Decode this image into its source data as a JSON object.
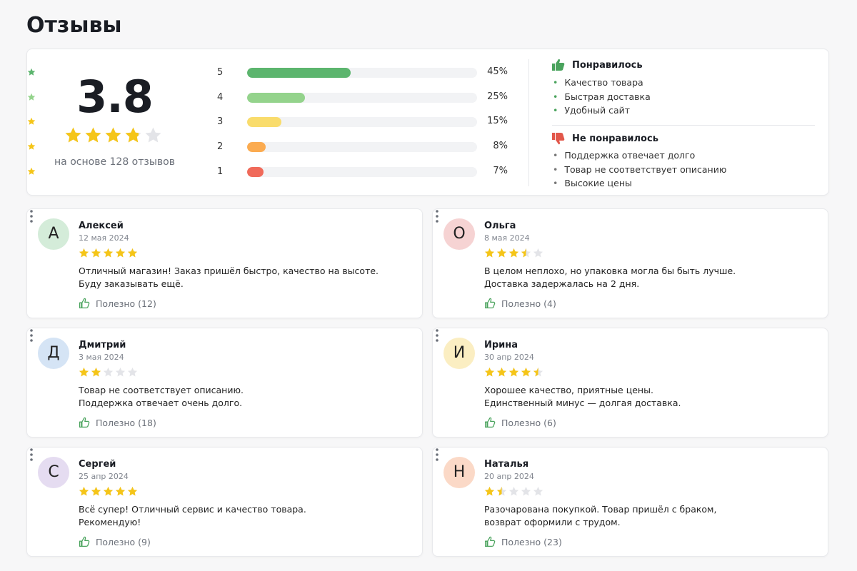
{
  "header": {
    "title": "Отзывы"
  },
  "summary": {
    "rating": 3.8,
    "based_on": "на основе 128 отзывов"
  },
  "distribution": [
    {
      "stars": 5,
      "value": 45,
      "label": "45%",
      "color": "#5cb56e"
    },
    {
      "stars": 4,
      "value": 25,
      "label": "25%",
      "color": "#94d38c"
    },
    {
      "stars": 3,
      "value": 15,
      "label": "15%",
      "color": "#f9dc6c"
    },
    {
      "stars": 2,
      "value": 8,
      "label": "8%",
      "color": "#fbab50"
    },
    {
      "stars": 1,
      "value": 7,
      "label": "7%",
      "color": "#f06a5a"
    }
  ],
  "pros": {
    "title": "Понравилось",
    "items": [
      "Качество товара",
      "Быстрая доставка",
      "Удобный сайт"
    ]
  },
  "cons": {
    "title": "Не понравилось",
    "items": [
      "Поддержка отвечает долго",
      "Товар не соответствует описанию",
      "Высокие цены"
    ]
  },
  "reviews": [
    {
      "initial": "А",
      "avatar_color": "#d4ecd9",
      "name": "Алексей",
      "date": "12 мая 2024",
      "rating": 5,
      "text": [
        "Отличный магазин! Заказ пришёл быстро, качество на высоте.",
        "Буду заказывать ещё."
      ],
      "helpful": "Полезно (12)"
    },
    {
      "initial": "О",
      "avatar_color": "#f6d3d3",
      "name": "Ольга",
      "date": "8 мая 2024",
      "rating": 3.5,
      "text": [
        "В целом неплохо, но упаковка могла бы быть лучше.",
        "Доставка задержалась на 2 дня."
      ],
      "helpful": "Полезно (4)"
    },
    {
      "initial": "Д",
      "avatar_color": "#d5e4f5",
      "name": "Дмитрий",
      "date": "3 мая 2024",
      "rating": 2,
      "text": [
        "Товар не соответствует описанию.",
        "Поддержка отвечает очень долго."
      ],
      "helpful": "Полезно (18)"
    },
    {
      "initial": "И",
      "avatar_color": "#fbeec2",
      "name": "Ирина",
      "date": "30 апр 2024",
      "rating": 4.5,
      "text": [
        "Хорошее качество, приятные цены.",
        "Единственный минус — долгая доставка."
      ],
      "helpful": "Полезно (6)"
    },
    {
      "initial": "С",
      "avatar_color": "#e5dcf1",
      "name": "Сергей",
      "date": "25 апр 2024",
      "rating": 5,
      "text": [
        "Всё супер! Отличный сервис и качество товара.",
        "Рекомендую!"
      ],
      "helpful": "Полезно (9)"
    },
    {
      "initial": "Н",
      "avatar_color": "#fbd9c7",
      "name": "Наталья",
      "date": "20 апр 2024",
      "rating": 1.5,
      "text": [
        "Разочарована покупкой. Товар пришёл с браком,",
        "возврат оформили с трудом."
      ],
      "helpful": "Полезно (23)"
    }
  ]
}
